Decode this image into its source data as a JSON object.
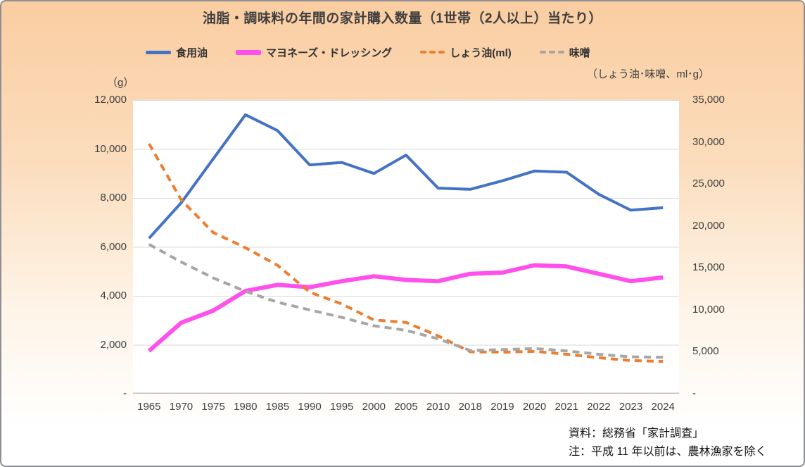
{
  "title": "油脂・調味料の年間の家計購入数量（1世帯（2人以上）当たり）",
  "left_axis_unit": "（g）",
  "right_axis_unit": "（しょう油･味噌、ml･g）",
  "footer": {
    "source": "資料：総務省「家計調査」",
    "note": "注：平成 11 年以前は、農林漁家を除く"
  },
  "colors": {
    "cooking_oil": "#4472C4",
    "mayonnaise": "#FF50EC",
    "soy_sauce": "#ED7D31",
    "miso": "#A6A6A6",
    "grid": "#DADADA",
    "axis": "#BFBFBF",
    "background_top": "#FACDA1",
    "background_bottom": "#FFFFFF"
  },
  "chart_data": {
    "type": "line",
    "categories": [
      "1965",
      "1970",
      "1975",
      "1980",
      "1985",
      "1990",
      "1995",
      "2000",
      "2005",
      "2010",
      "2018",
      "2019",
      "2020",
      "2021",
      "2022",
      "2023",
      "2024"
    ],
    "series": [
      {
        "name": "食用油",
        "axis": "left",
        "unit": "g",
        "color": "#4472C4",
        "style": "solid",
        "width": 4,
        "values": [
          6350,
          7800,
          9600,
          11400,
          10750,
          9350,
          9450,
          9000,
          9750,
          8400,
          8350,
          8700,
          9100,
          9050,
          8150,
          7500,
          7600
        ]
      },
      {
        "name": "マヨネーズ・ドレッシング",
        "axis": "left",
        "unit": "g",
        "color": "#FF50EC",
        "style": "solid",
        "width": 6,
        "values": [
          1750,
          2900,
          3400,
          4200,
          4450,
          4350,
          4600,
          4800,
          4650,
          4600,
          4900,
          4950,
          5250,
          5200,
          4900,
          4600,
          4750
        ]
      },
      {
        "name": "しょう油(ml)",
        "axis": "right",
        "unit": "ml",
        "color": "#ED7D31",
        "style": "dashed",
        "width": 4,
        "values": [
          29800,
          23100,
          19200,
          17400,
          15300,
          12100,
          10700,
          8800,
          8500,
          6900,
          5000,
          4950,
          5050,
          4700,
          4300,
          3950,
          3850
        ]
      },
      {
        "name": "味噌",
        "axis": "right",
        "unit": "g",
        "color": "#A6A6A6",
        "style": "dashed",
        "width": 4,
        "values": [
          17800,
          15700,
          13800,
          12200,
          10900,
          10000,
          9100,
          8100,
          7550,
          6550,
          5150,
          5250,
          5400,
          5100,
          4700,
          4400,
          4350
        ]
      }
    ],
    "left_axis": {
      "min": 0,
      "max": 12000,
      "tick_step": 2000,
      "tick_labels": [
        "12,000",
        "10,000",
        "8,000",
        "6,000",
        "4,000",
        "2,000",
        "-"
      ]
    },
    "right_axis": {
      "min": 0,
      "max": 35000,
      "tick_step": 5000,
      "tick_labels": [
        "35,000",
        "30,000",
        "25,000",
        "20,000",
        "15,000",
        "10,000",
        "5,000",
        "-"
      ]
    },
    "grid": true,
    "legend_position": "top"
  }
}
